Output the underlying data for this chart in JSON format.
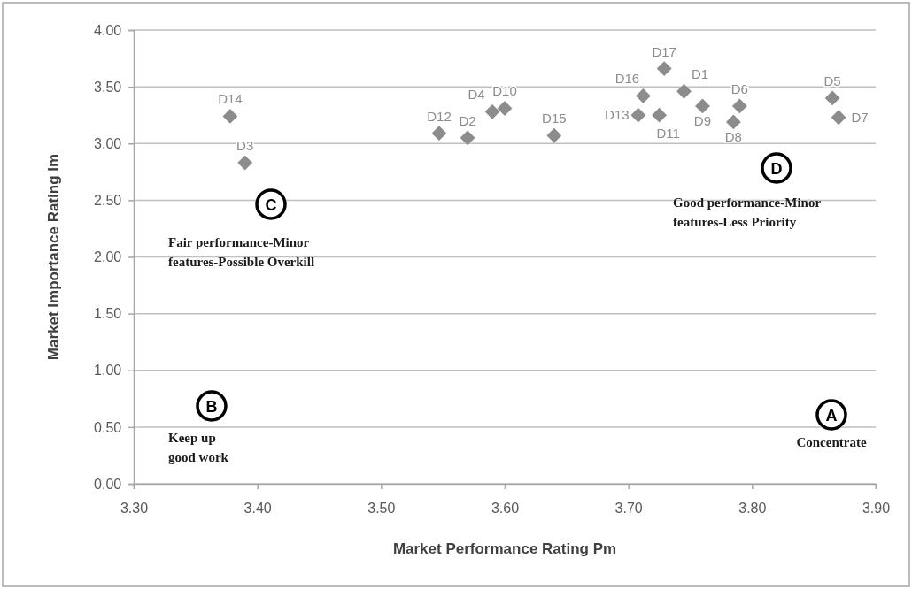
{
  "chart_data": {
    "type": "scatter",
    "xlabel": "Market Performance Rating Pm",
    "ylabel": "Market Importance Rating Im",
    "xlim": [
      3.3,
      3.9
    ],
    "ylim": [
      0,
      4
    ],
    "xticks": [
      {
        "value": 3.3,
        "label": "3.30"
      },
      {
        "value": 3.4,
        "label": "3.40"
      },
      {
        "value": 3.5,
        "label": "3.50"
      },
      {
        "value": 3.6,
        "label": "3.60"
      },
      {
        "value": 3.7,
        "label": "3.70"
      },
      {
        "value": 3.8,
        "label": "3.80"
      },
      {
        "value": 3.9,
        "label": "3.90"
      }
    ],
    "yticks": [
      {
        "value": 0,
        "label": "0.00"
      },
      {
        "value": 0.5,
        "label": "0.50"
      },
      {
        "value": 1,
        "label": "1.00"
      },
      {
        "value": 1.5,
        "label": "1.50"
      },
      {
        "value": 2,
        "label": "2.00"
      },
      {
        "value": 2.5,
        "label": "2.50"
      },
      {
        "value": 3,
        "label": "3.00"
      },
      {
        "value": 3.5,
        "label": "3.50"
      },
      {
        "value": 4,
        "label": "4.00"
      }
    ],
    "grid": "y",
    "legend": false,
    "marker": "diamond",
    "series": [
      {
        "name": "D1",
        "color": "#8c8c8c",
        "x": [
          3.745
        ],
        "values": [
          3.46
        ]
      },
      {
        "name": "D2",
        "color": "#8c8c8c",
        "x": [
          3.57
        ],
        "values": [
          3.05
        ]
      },
      {
        "name": "D3",
        "color": "#8c8c8c",
        "x": [
          3.39
        ],
        "values": [
          2.83
        ]
      },
      {
        "name": "D4",
        "color": "#8c8c8c",
        "x": [
          3.59
        ],
        "values": [
          3.28
        ]
      },
      {
        "name": "D5",
        "color": "#8c8c8c",
        "x": [
          3.865
        ],
        "values": [
          3.4
        ]
      },
      {
        "name": "D6",
        "color": "#8c8c8c",
        "x": [
          3.79
        ],
        "values": [
          3.33
        ]
      },
      {
        "name": "D7",
        "color": "#8c8c8c",
        "x": [
          3.87
        ],
        "values": [
          3.23
        ]
      },
      {
        "name": "D8",
        "color": "#8c8c8c",
        "x": [
          3.785
        ],
        "values": [
          3.19
        ]
      },
      {
        "name": "D9",
        "color": "#8c8c8c",
        "x": [
          3.76
        ],
        "values": [
          3.33
        ]
      },
      {
        "name": "D10",
        "color": "#8c8c8c",
        "x": [
          3.6
        ],
        "values": [
          3.31
        ]
      },
      {
        "name": "D11",
        "color": "#8c8c8c",
        "x": [
          3.725
        ],
        "values": [
          3.25
        ]
      },
      {
        "name": "D12",
        "color": "#8c8c8c",
        "x": [
          3.547
        ],
        "values": [
          3.09
        ]
      },
      {
        "name": "D13",
        "color": "#8c8c8c",
        "x": [
          3.708
        ],
        "values": [
          3.25
        ]
      },
      {
        "name": "D14",
        "color": "#8c8c8c",
        "x": [
          3.378
        ],
        "values": [
          3.24
        ]
      },
      {
        "name": "D15",
        "color": "#8c8c8c",
        "x": [
          3.64
        ],
        "values": [
          3.07
        ]
      },
      {
        "name": "D16",
        "color": "#8c8c8c",
        "x": [
          3.712
        ],
        "values": [
          3.42
        ]
      },
      {
        "name": "D17",
        "color": "#8c8c8c",
        "x": [
          3.729
        ],
        "values": [
          3.66
        ]
      }
    ],
    "annotations": [
      "C",
      "Fair performance-Minor features-Possible Overkill",
      "D",
      "Good performance-Minor features-Less Priority",
      "B",
      "Keep up good work",
      "A",
      "Concentrate"
    ]
  }
}
